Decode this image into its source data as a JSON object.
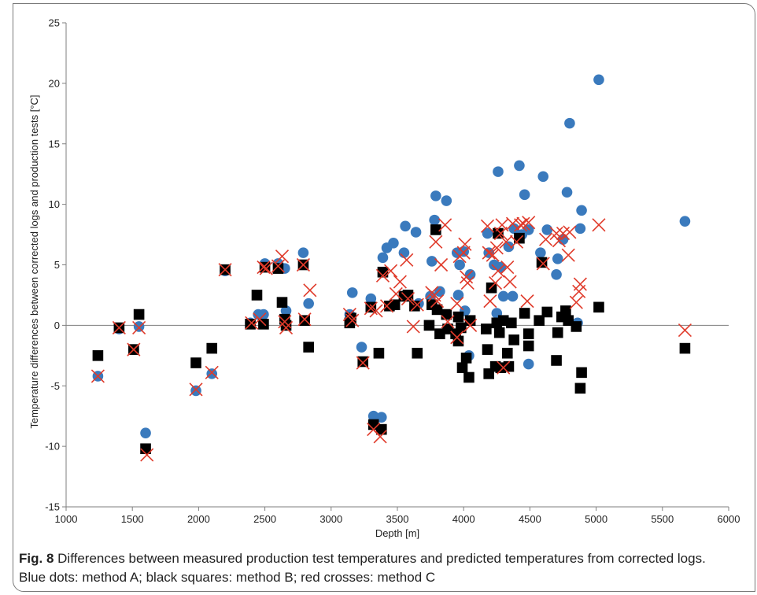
{
  "figure": {
    "label": "Fig. 8",
    "caption": "Differences between measured production test temperatures and predicted temperatures from corrected logs. Blue dots: method A; black squares: method B; red crosses: method C"
  },
  "colors": {
    "method_a": "#3a7abd",
    "method_b": "#000000",
    "method_c": "#e03a2a",
    "axis": "#7f7f7f"
  },
  "chart_data": {
    "type": "scatter",
    "title": "",
    "xlabel": "Depth [m]",
    "ylabel": "Temperature differences between corrected logs and production tests [°C]",
    "xlim": [
      1000,
      6000
    ],
    "ylim": [
      -15,
      25
    ],
    "xticks": [
      1000,
      1500,
      2000,
      2500,
      3000,
      3500,
      4000,
      4500,
      5000,
      5500,
      6000
    ],
    "yticks": [
      -15,
      -10,
      -5,
      0,
      5,
      10,
      15,
      20,
      25
    ],
    "grid": false,
    "legend": "none",
    "series": [
      {
        "marker": "circle",
        "points": [
          [
            1240,
            -4.2
          ],
          [
            1400,
            -0.3
          ],
          [
            1510,
            -2.0
          ],
          [
            1550,
            -0.1
          ],
          [
            1600,
            -8.9
          ],
          [
            1980,
            -5.4
          ],
          [
            2100,
            -4.0
          ],
          [
            2200,
            4.5
          ],
          [
            2390,
            0.2
          ],
          [
            2450,
            0.9
          ],
          [
            2490,
            0.9
          ],
          [
            2500,
            5.1
          ],
          [
            2600,
            5.1
          ],
          [
            2650,
            4.7
          ],
          [
            2660,
            1.2
          ],
          [
            2790,
            6.0
          ],
          [
            2830,
            1.8
          ],
          [
            3140,
            0.9
          ],
          [
            3160,
            2.7
          ],
          [
            3230,
            -1.8
          ],
          [
            3300,
            2.2
          ],
          [
            3320,
            -7.5
          ],
          [
            3380,
            -7.6
          ],
          [
            3390,
            5.6
          ],
          [
            3420,
            6.4
          ],
          [
            3470,
            6.8
          ],
          [
            3550,
            6.0
          ],
          [
            3560,
            8.2
          ],
          [
            3640,
            7.7
          ],
          [
            3660,
            1.8
          ],
          [
            3750,
            2.4
          ],
          [
            3760,
            5.3
          ],
          [
            3780,
            8.7
          ],
          [
            3790,
            10.7
          ],
          [
            3820,
            2.8
          ],
          [
            3870,
            10.3
          ],
          [
            3950,
            6.0
          ],
          [
            3960,
            2.5
          ],
          [
            3970,
            5.0
          ],
          [
            4000,
            6.1
          ],
          [
            4010,
            1.2
          ],
          [
            4040,
            -2.5
          ],
          [
            4050,
            4.2
          ],
          [
            4180,
            7.6
          ],
          [
            4190,
            6.0
          ],
          [
            4230,
            5.0
          ],
          [
            4250,
            1.0
          ],
          [
            4260,
            12.7
          ],
          [
            4280,
            4.8
          ],
          [
            4300,
            2.4
          ],
          [
            4340,
            6.5
          ],
          [
            4370,
            2.4
          ],
          [
            4380,
            8.0
          ],
          [
            4420,
            13.2
          ],
          [
            4440,
            7.5
          ],
          [
            4460,
            10.8
          ],
          [
            4490,
            7.9
          ],
          [
            4490,
            -3.2
          ],
          [
            4580,
            6.0
          ],
          [
            4600,
            12.3
          ],
          [
            4630,
            7.9
          ],
          [
            4700,
            4.2
          ],
          [
            4710,
            5.5
          ],
          [
            4750,
            7.1
          ],
          [
            4780,
            11.0
          ],
          [
            4800,
            16.7
          ],
          [
            4860,
            0.2
          ],
          [
            4880,
            8.0
          ],
          [
            4890,
            9.5
          ],
          [
            5020,
            20.3
          ],
          [
            5670,
            8.6
          ]
        ]
      },
      {
        "marker": "square",
        "points": [
          [
            1240,
            -2.5
          ],
          [
            1400,
            -0.2
          ],
          [
            1510,
            -2.0
          ],
          [
            1550,
            0.9
          ],
          [
            1600,
            -10.2
          ],
          [
            1980,
            -3.1
          ],
          [
            2100,
            -1.9
          ],
          [
            2200,
            4.6
          ],
          [
            2390,
            0.1
          ],
          [
            2440,
            2.5
          ],
          [
            2490,
            0.1
          ],
          [
            2500,
            4.8
          ],
          [
            2600,
            4.7
          ],
          [
            2630,
            1.9
          ],
          [
            2650,
            0.5
          ],
          [
            2660,
            0.0
          ],
          [
            2790,
            5.0
          ],
          [
            2800,
            0.4
          ],
          [
            2830,
            -1.8
          ],
          [
            3140,
            0.2
          ],
          [
            3150,
            0.6
          ],
          [
            3240,
            -3.0
          ],
          [
            3300,
            1.5
          ],
          [
            3320,
            -8.2
          ],
          [
            3360,
            -2.3
          ],
          [
            3380,
            -8.6
          ],
          [
            3390,
            4.4
          ],
          [
            3440,
            1.6
          ],
          [
            3480,
            1.7
          ],
          [
            3550,
            2.4
          ],
          [
            3580,
            2.5
          ],
          [
            3630,
            1.6
          ],
          [
            3650,
            -2.3
          ],
          [
            3740,
            0.0
          ],
          [
            3760,
            1.7
          ],
          [
            3790,
            7.9
          ],
          [
            3800,
            1.3
          ],
          [
            3820,
            -0.7
          ],
          [
            3870,
            0.9
          ],
          [
            3880,
            -0.3
          ],
          [
            3940,
            -0.7
          ],
          [
            3960,
            0.7
          ],
          [
            3960,
            -1.3
          ],
          [
            3980,
            -0.2
          ],
          [
            3990,
            -3.5
          ],
          [
            4020,
            -2.7
          ],
          [
            4040,
            -4.3
          ],
          [
            4050,
            0.4
          ],
          [
            4170,
            -0.3
          ],
          [
            4180,
            -2.0
          ],
          [
            4190,
            -4.0
          ],
          [
            4210,
            3.1
          ],
          [
            4240,
            -3.4
          ],
          [
            4250,
            0.2
          ],
          [
            4260,
            7.6
          ],
          [
            4270,
            -0.6
          ],
          [
            4280,
            -3.5
          ],
          [
            4300,
            0.4
          ],
          [
            4330,
            -2.3
          ],
          [
            4340,
            -3.4
          ],
          [
            4360,
            0.2
          ],
          [
            4380,
            -1.2
          ],
          [
            4420,
            7.2
          ],
          [
            4460,
            1.0
          ],
          [
            4490,
            -1.7
          ],
          [
            4490,
            -0.7
          ],
          [
            4570,
            0.4
          ],
          [
            4590,
            5.2
          ],
          [
            4630,
            1.1
          ],
          [
            4700,
            -2.9
          ],
          [
            4710,
            -0.6
          ],
          [
            4740,
            0.7
          ],
          [
            4770,
            1.2
          ],
          [
            4790,
            0.4
          ],
          [
            4850,
            -0.1
          ],
          [
            4880,
            -5.2
          ],
          [
            4890,
            -3.9
          ],
          [
            5020,
            1.5
          ],
          [
            5670,
            -1.9
          ]
        ]
      },
      {
        "marker": "cross",
        "points": [
          [
            1240,
            -4.2
          ],
          [
            1400,
            -0.2
          ],
          [
            1510,
            -2.0
          ],
          [
            1550,
            -0.2
          ],
          [
            1610,
            -10.7
          ],
          [
            1980,
            -5.3
          ],
          [
            2100,
            -3.9
          ],
          [
            2200,
            4.6
          ],
          [
            2400,
            0.2
          ],
          [
            2460,
            0.5
          ],
          [
            2490,
            4.8
          ],
          [
            2510,
            4.7
          ],
          [
            2600,
            4.9
          ],
          [
            2630,
            5.7
          ],
          [
            2650,
            0.3
          ],
          [
            2660,
            -0.2
          ],
          [
            2790,
            5.0
          ],
          [
            2800,
            0.5
          ],
          [
            2840,
            2.9
          ],
          [
            3140,
            0.9
          ],
          [
            3160,
            0.4
          ],
          [
            3240,
            -3.1
          ],
          [
            3300,
            1.4
          ],
          [
            3320,
            -8.6
          ],
          [
            3340,
            1.2
          ],
          [
            3370,
            -9.2
          ],
          [
            3390,
            4.1
          ],
          [
            3420,
            1.6
          ],
          [
            3450,
            4.5
          ],
          [
            3490,
            2.6
          ],
          [
            3520,
            3.6
          ],
          [
            3570,
            5.4
          ],
          [
            3580,
            2.2
          ],
          [
            3620,
            -0.1
          ],
          [
            3650,
            1.7
          ],
          [
            3760,
            2.7
          ],
          [
            3780,
            2.5
          ],
          [
            3790,
            6.9
          ],
          [
            3800,
            2.0
          ],
          [
            3830,
            5.0
          ],
          [
            3860,
            8.3
          ],
          [
            3880,
            0.3
          ],
          [
            3950,
            1.8
          ],
          [
            3950,
            -1.0
          ],
          [
            3970,
            5.7
          ],
          [
            4000,
            6.0
          ],
          [
            4010,
            6.7
          ],
          [
            4020,
            4.0
          ],
          [
            4030,
            3.5
          ],
          [
            4050,
            0.0
          ],
          [
            4180,
            8.2
          ],
          [
            4190,
            6.0
          ],
          [
            4200,
            2.0
          ],
          [
            4220,
            5.8
          ],
          [
            4240,
            3.5
          ],
          [
            4250,
            6.4
          ],
          [
            4260,
            4.5
          ],
          [
            4280,
            7.6
          ],
          [
            4290,
            8.3
          ],
          [
            4300,
            -3.5
          ],
          [
            4320,
            6.9
          ],
          [
            4330,
            4.8
          ],
          [
            4350,
            3.6
          ],
          [
            4370,
            8.4
          ],
          [
            4400,
            6.9
          ],
          [
            4430,
            8.3
          ],
          [
            4450,
            8.4
          ],
          [
            4480,
            2.0
          ],
          [
            4490,
            8.5
          ],
          [
            4600,
            5.1
          ],
          [
            4620,
            7.1
          ],
          [
            4700,
            7.6
          ],
          [
            4720,
            7.0
          ],
          [
            4750,
            7.6
          ],
          [
            4790,
            5.8
          ],
          [
            4800,
            7.7
          ],
          [
            4850,
            1.9
          ],
          [
            4870,
            2.8
          ],
          [
            4880,
            3.4
          ],
          [
            5020,
            8.3
          ],
          [
            5670,
            -0.4
          ]
        ]
      }
    ]
  }
}
